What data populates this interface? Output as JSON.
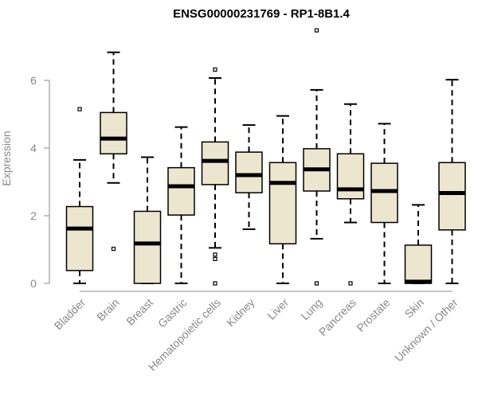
{
  "chart_data": {
    "type": "box",
    "title": "ENSG00000231769 - RP1-8B1.4",
    "xlabel": "",
    "ylabel": "Expression",
    "ylim": [
      0,
      7.4
    ],
    "yticks": [
      0,
      2,
      4,
      6
    ],
    "box_fill": "#ede6cf",
    "categories": [
      "Bladder",
      "Brain",
      "Breast",
      "Gastric",
      "Hematopoietic cells",
      "Kidney",
      "Liver",
      "Lung",
      "Pancreas",
      "Prostate",
      "Skin",
      "Unknown / Other"
    ],
    "boxes": [
      {
        "min": 0.0,
        "q1": 0.38,
        "median": 1.62,
        "q3": 2.27,
        "max": 3.65,
        "outliers": [
          5.15
        ]
      },
      {
        "min": 2.97,
        "q1": 3.83,
        "median": 4.28,
        "q3": 5.05,
        "max": 6.83,
        "outliers": [
          1.02
        ]
      },
      {
        "min": 0.0,
        "q1": 0.0,
        "median": 1.18,
        "q3": 2.13,
        "max": 3.73,
        "outliers": []
      },
      {
        "min": 0.0,
        "q1": 2.02,
        "median": 2.87,
        "q3": 3.42,
        "max": 4.62,
        "outliers": []
      },
      {
        "min": 1.05,
        "q1": 2.92,
        "median": 3.62,
        "q3": 4.18,
        "max": 6.07,
        "outliers": [
          6.32,
          0.85,
          0.72,
          0.0
        ]
      },
      {
        "min": 1.6,
        "q1": 2.68,
        "median": 3.2,
        "q3": 3.88,
        "max": 4.68,
        "outliers": []
      },
      {
        "min": 0.0,
        "q1": 1.17,
        "median": 2.97,
        "q3": 3.57,
        "max": 4.95,
        "outliers": []
      },
      {
        "min": 1.32,
        "q1": 2.73,
        "median": 3.37,
        "q3": 3.98,
        "max": 5.72,
        "outliers": [
          7.48,
          0.0
        ]
      },
      {
        "min": 1.8,
        "q1": 2.5,
        "median": 2.78,
        "q3": 3.83,
        "max": 5.3,
        "outliers": [
          0.0
        ]
      },
      {
        "min": 0.0,
        "q1": 1.8,
        "median": 2.73,
        "q3": 3.55,
        "max": 4.72,
        "outliers": []
      },
      {
        "min": 0.0,
        "q1": 0.0,
        "median": 0.05,
        "q3": 1.13,
        "max": 2.32,
        "outliers": []
      },
      {
        "min": 0.0,
        "q1": 1.58,
        "median": 2.67,
        "q3": 3.57,
        "max": 6.02,
        "outliers": []
      }
    ]
  }
}
